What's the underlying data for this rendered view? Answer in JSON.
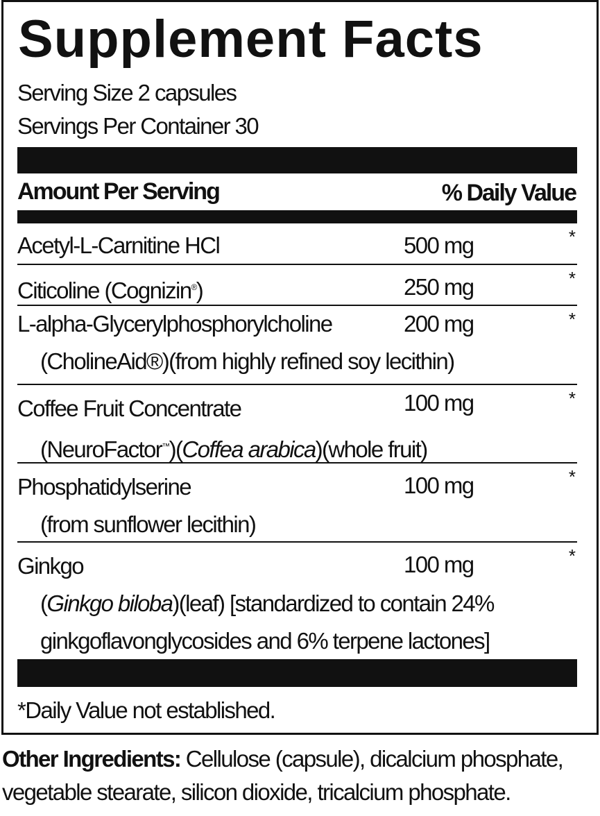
{
  "title": "Supplement Facts",
  "serving_size": "Serving Size 2 capsules",
  "servings_per_container": "Servings Per Container 30",
  "header": {
    "amount": "Amount Per Serving",
    "dv": "% Daily Value"
  },
  "rows": [
    {
      "name": "Acetyl-L-Carnitine HCl",
      "amount": "500 mg",
      "dv": "*"
    },
    {
      "name": "Citicoline (Cognizin",
      "mark": "®",
      "name_end": ")",
      "amount": "250 mg",
      "dv": "*"
    },
    {
      "name": "L-alpha-Glycerylphosphorylcholine",
      "sub": "(CholineAid®)(from highly refined soy lecithin)",
      "amount": "200 mg",
      "dv": "*"
    },
    {
      "name": "Coffee Fruit Concentrate",
      "sub_a": "(NeuroFactor",
      "sub_tm": "™",
      "sub_b": ")(",
      "sub_italic": "Coffea arabica",
      "sub_c": ")(whole fruit)",
      "amount": "100 mg",
      "dv": "*"
    },
    {
      "name": "Phosphatidylserine",
      "sub": "(from sunflower lecithin)",
      "amount": "100 mg",
      "dv": "*"
    },
    {
      "name": "Ginkgo",
      "sub_a": "(",
      "sub_italic": "Ginkgo biloba",
      "sub_b": ")(leaf) [standardized to contain 24%",
      "sub2": "ginkgoflavonglycosides and 6% terpene lactones]",
      "amount": "100 mg",
      "dv": "*"
    }
  ],
  "footnote": "*Daily Value not established.",
  "other_ingredients": {
    "label": "Other Ingredients:",
    "text": " Cellulose (capsule), dicalcium phosphate, vegetable stearate, silicon dioxide, tricalcium phosphate."
  }
}
